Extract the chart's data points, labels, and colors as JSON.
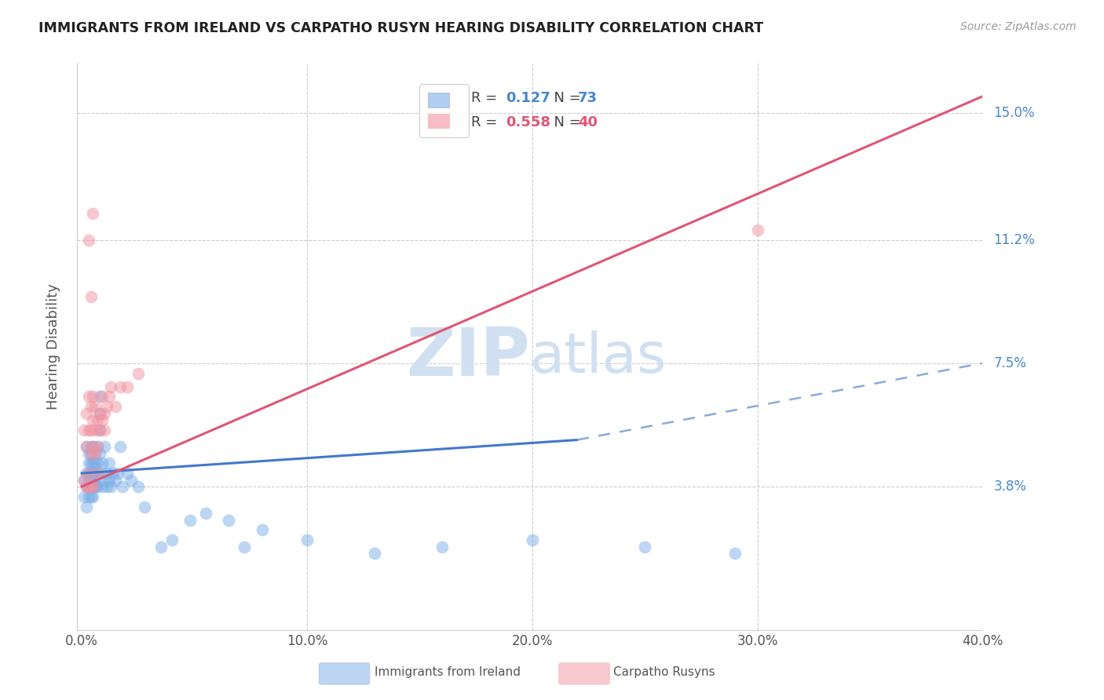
{
  "title": "IMMIGRANTS FROM IRELAND VS CARPATHO RUSYN HEARING DISABILITY CORRELATION CHART",
  "source": "Source: ZipAtlas.com",
  "xlabel_ticks": [
    "0.0%",
    "10.0%",
    "20.0%",
    "30.0%",
    "40.0%"
  ],
  "xlabel_vals": [
    0.0,
    0.1,
    0.2,
    0.3,
    0.4
  ],
  "ylabel": "Hearing Disability",
  "ylabel_ticks_labels": [
    "3.8%",
    "7.5%",
    "11.2%",
    "15.0%"
  ],
  "ylabel_ticks_vals": [
    0.038,
    0.075,
    0.112,
    0.15
  ],
  "xlim": [
    -0.002,
    0.4
  ],
  "ylim": [
    -0.005,
    0.165
  ],
  "ireland_R": 0.127,
  "ireland_N": 73,
  "carpatho_R": 0.558,
  "carpatho_N": 40,
  "background_color": "#ffffff",
  "grid_color": "#cccccc",
  "ireland_color": "#7aaee8",
  "carpatho_color": "#f092a0",
  "trendline_ireland_solid_color": "#4477cc",
  "trendline_ireland_dash_color": "#88aadd",
  "trendline_carpatho_color": "#e05575",
  "watermark_color": "#d0e0f0",
  "ireland_scatter_x": [
    0.001,
    0.001,
    0.002,
    0.002,
    0.002,
    0.002,
    0.003,
    0.003,
    0.003,
    0.003,
    0.003,
    0.003,
    0.003,
    0.004,
    0.004,
    0.004,
    0.004,
    0.004,
    0.004,
    0.004,
    0.005,
    0.005,
    0.005,
    0.005,
    0.005,
    0.005,
    0.005,
    0.006,
    0.006,
    0.006,
    0.006,
    0.006,
    0.006,
    0.007,
    0.007,
    0.007,
    0.007,
    0.008,
    0.008,
    0.008,
    0.008,
    0.009,
    0.009,
    0.009,
    0.01,
    0.01,
    0.011,
    0.011,
    0.012,
    0.012,
    0.013,
    0.014,
    0.015,
    0.016,
    0.017,
    0.018,
    0.02,
    0.022,
    0.025,
    0.028,
    0.035,
    0.04,
    0.048,
    0.055,
    0.065,
    0.072,
    0.08,
    0.1,
    0.13,
    0.16,
    0.2,
    0.25,
    0.29
  ],
  "ireland_scatter_y": [
    0.04,
    0.035,
    0.042,
    0.038,
    0.05,
    0.032,
    0.045,
    0.04,
    0.038,
    0.035,
    0.042,
    0.048,
    0.038,
    0.045,
    0.04,
    0.038,
    0.05,
    0.035,
    0.042,
    0.048,
    0.04,
    0.038,
    0.045,
    0.042,
    0.038,
    0.035,
    0.05,
    0.04,
    0.038,
    0.042,
    0.045,
    0.048,
    0.038,
    0.05,
    0.042,
    0.038,
    0.045,
    0.055,
    0.048,
    0.06,
    0.065,
    0.038,
    0.042,
    0.045,
    0.05,
    0.04,
    0.038,
    0.042,
    0.045,
    0.04,
    0.038,
    0.042,
    0.04,
    0.042,
    0.05,
    0.038,
    0.042,
    0.04,
    0.038,
    0.032,
    0.02,
    0.022,
    0.028,
    0.03,
    0.028,
    0.02,
    0.025,
    0.022,
    0.018,
    0.02,
    0.022,
    0.02,
    0.018
  ],
  "carpatho_scatter_x": [
    0.001,
    0.001,
    0.002,
    0.002,
    0.002,
    0.003,
    0.003,
    0.003,
    0.003,
    0.004,
    0.004,
    0.004,
    0.004,
    0.005,
    0.005,
    0.005,
    0.005,
    0.006,
    0.006,
    0.006,
    0.007,
    0.007,
    0.007,
    0.008,
    0.008,
    0.009,
    0.009,
    0.01,
    0.01,
    0.011,
    0.012,
    0.013,
    0.015,
    0.017,
    0.02,
    0.025,
    0.003,
    0.004,
    0.005,
    0.3
  ],
  "carpatho_scatter_y": [
    0.04,
    0.055,
    0.038,
    0.05,
    0.06,
    0.042,
    0.055,
    0.065,
    0.038,
    0.048,
    0.055,
    0.062,
    0.038,
    0.05,
    0.058,
    0.065,
    0.038,
    0.048,
    0.055,
    0.062,
    0.05,
    0.058,
    0.042,
    0.055,
    0.06,
    0.058,
    0.065,
    0.06,
    0.055,
    0.062,
    0.065,
    0.068,
    0.062,
    0.068,
    0.068,
    0.072,
    0.112,
    0.095,
    0.12,
    0.115
  ],
  "ireland_trend_x0": 0.0,
  "ireland_trend_x_solid_end": 0.22,
  "ireland_trend_x1": 0.4,
  "ireland_trend_y0": 0.042,
  "ireland_trend_y_solid_end": 0.052,
  "ireland_trend_y1": 0.075,
  "carpatho_trend_x0": 0.0,
  "carpatho_trend_x1": 0.4,
  "carpatho_trend_y0": 0.038,
  "carpatho_trend_y1": 0.155
}
